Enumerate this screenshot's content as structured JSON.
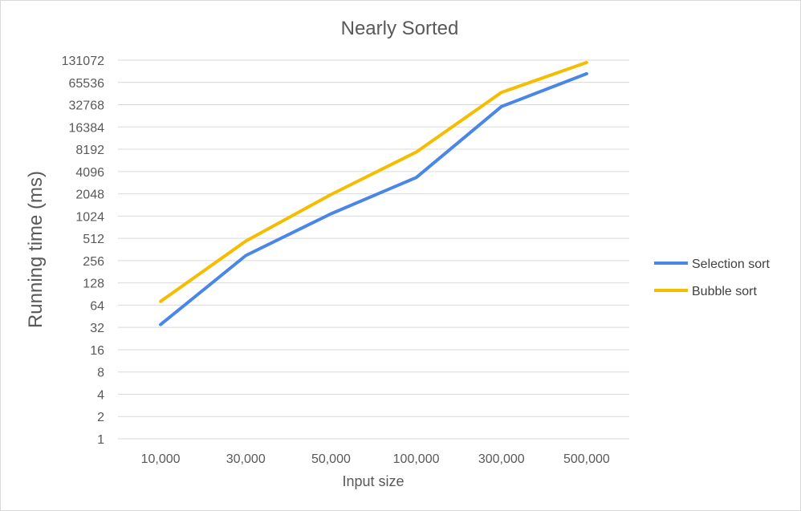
{
  "chart_data": {
    "type": "line",
    "title": "Nearly Sorted",
    "xlabel": "Input size",
    "ylabel": "Running time (ms)",
    "y_scale": "log2",
    "ylim": [
      1,
      131072
    ],
    "y_ticks": [
      "1",
      "2",
      "4",
      "8",
      "16",
      "32",
      "64",
      "128",
      "256",
      "512",
      "1024",
      "2048",
      "4096",
      "8192",
      "16384",
      "32768",
      "65536",
      "131072"
    ],
    "categories": [
      "10,000",
      "30,000",
      "50,000",
      "100,000",
      "300,000",
      "500,000"
    ],
    "series": [
      {
        "name": "Selection sort",
        "color": "#4a86e8",
        "values": [
          35,
          300,
          1100,
          3400,
          31000,
          86000
        ]
      },
      {
        "name": "Bubble sort",
        "color": "#f5bd00",
        "values": [
          72,
          470,
          2000,
          7500,
          48000,
          122000
        ]
      }
    ],
    "legend_position": "right",
    "grid": true
  }
}
